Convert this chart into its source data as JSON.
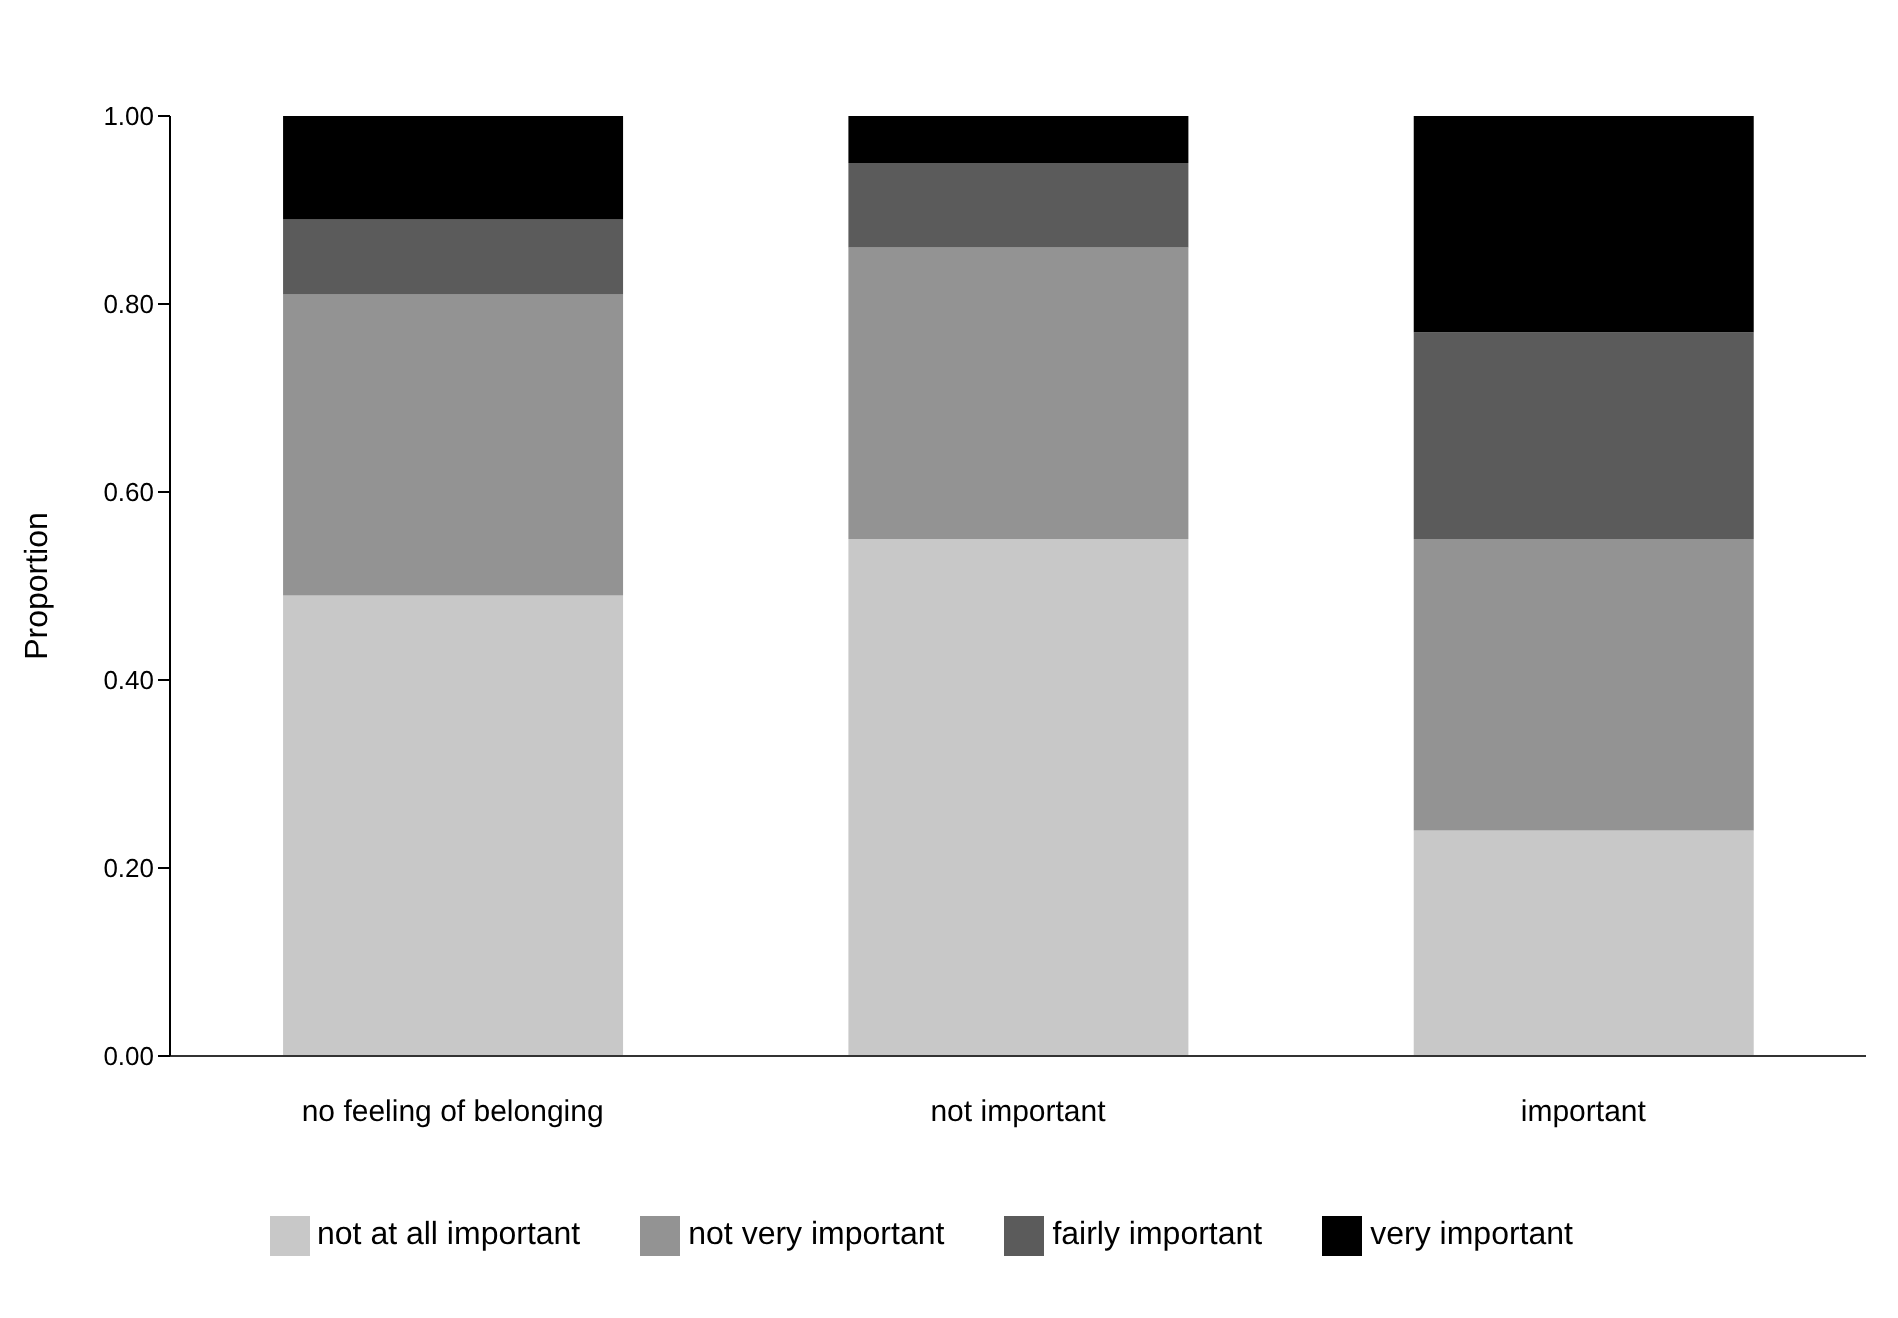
{
  "chart_data": {
    "type": "bar",
    "stacked": true,
    "ylabel": "Proportion",
    "categories": [
      "no feeling of belonging",
      "not important",
      "important"
    ],
    "series": [
      {
        "name": "not at all important",
        "color": "#c8c8c8",
        "values": [
          0.49,
          0.55,
          0.24
        ]
      },
      {
        "name": "not very important",
        "color": "#939393",
        "values": [
          0.32,
          0.31,
          0.31
        ]
      },
      {
        "name": "fairly important",
        "color": "#5b5b5b",
        "values": [
          0.08,
          0.09,
          0.22
        ]
      },
      {
        "name": "very important",
        "color": "#000000",
        "values": [
          0.11,
          0.05,
          0.23
        ]
      }
    ],
    "ylim": [
      0,
      1
    ],
    "yticks": [
      {
        "value": 0,
        "label": "0.00"
      },
      {
        "value": 0.2,
        "label": "0.20"
      },
      {
        "value": 0.4,
        "label": "0.40"
      },
      {
        "value": 0.6,
        "label": "0.60"
      },
      {
        "value": 0.8,
        "label": "0.80"
      },
      {
        "value": 1,
        "label": "1.00"
      }
    ],
    "grid": false,
    "legend": "bottom"
  }
}
